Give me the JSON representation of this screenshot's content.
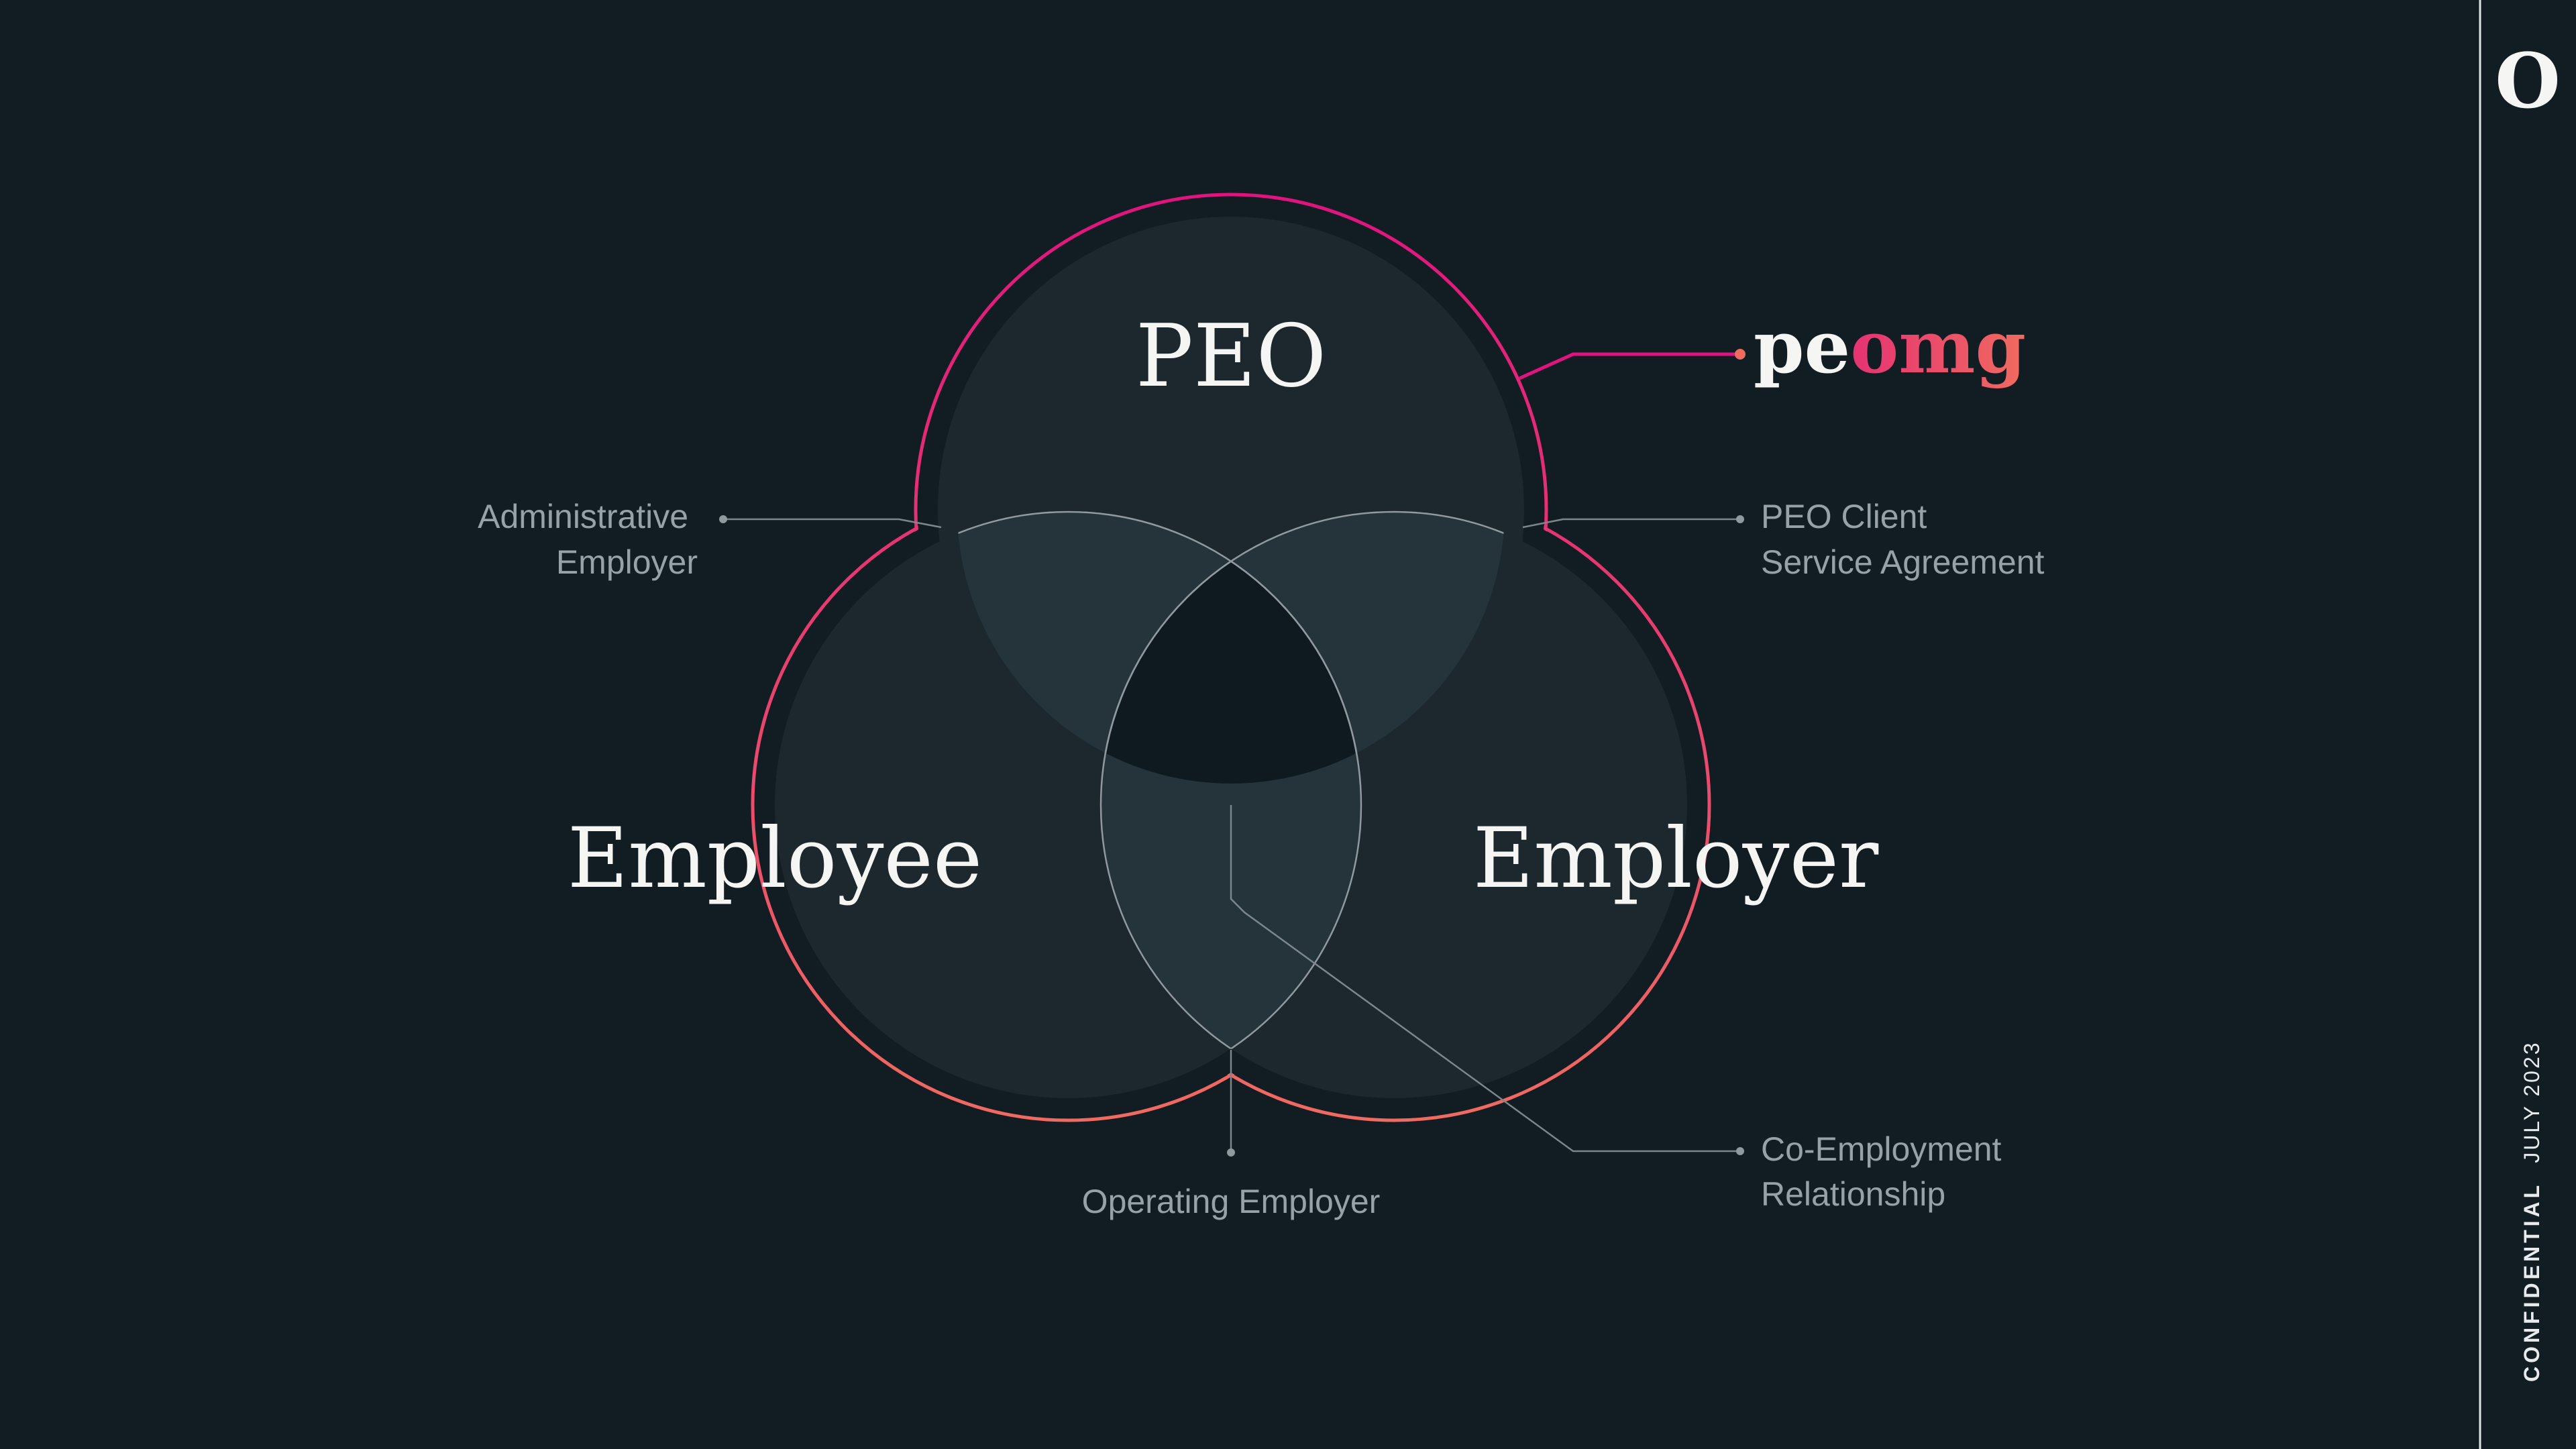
{
  "circles": {
    "top": {
      "label": "PEO"
    },
    "left": {
      "label": "Employee"
    },
    "right": {
      "label": "Employer"
    }
  },
  "callouts": {
    "admin_line1": "Administrative",
    "admin_line2": "Employer",
    "client_line1": "PEO Client",
    "client_line2": "Service Agreement",
    "operating": "Operating Employer",
    "coemp_line1": "Co-Employment",
    "coemp_line2": "Relationship"
  },
  "brand": {
    "part1": "pe",
    "part2": "omg"
  },
  "sidebar": {
    "logo": "O",
    "confidential": "CONFIDENTIAL",
    "date": "JULY 2023"
  },
  "colors": {
    "background": "#111c23",
    "circle_fill": "#1c282d",
    "overlap_fill": "#25333a",
    "center_fill": "#0f1a20",
    "accent_pink": "#e0137f",
    "accent_coral": "#f06b5f",
    "callout_text": "#98a1a7"
  }
}
